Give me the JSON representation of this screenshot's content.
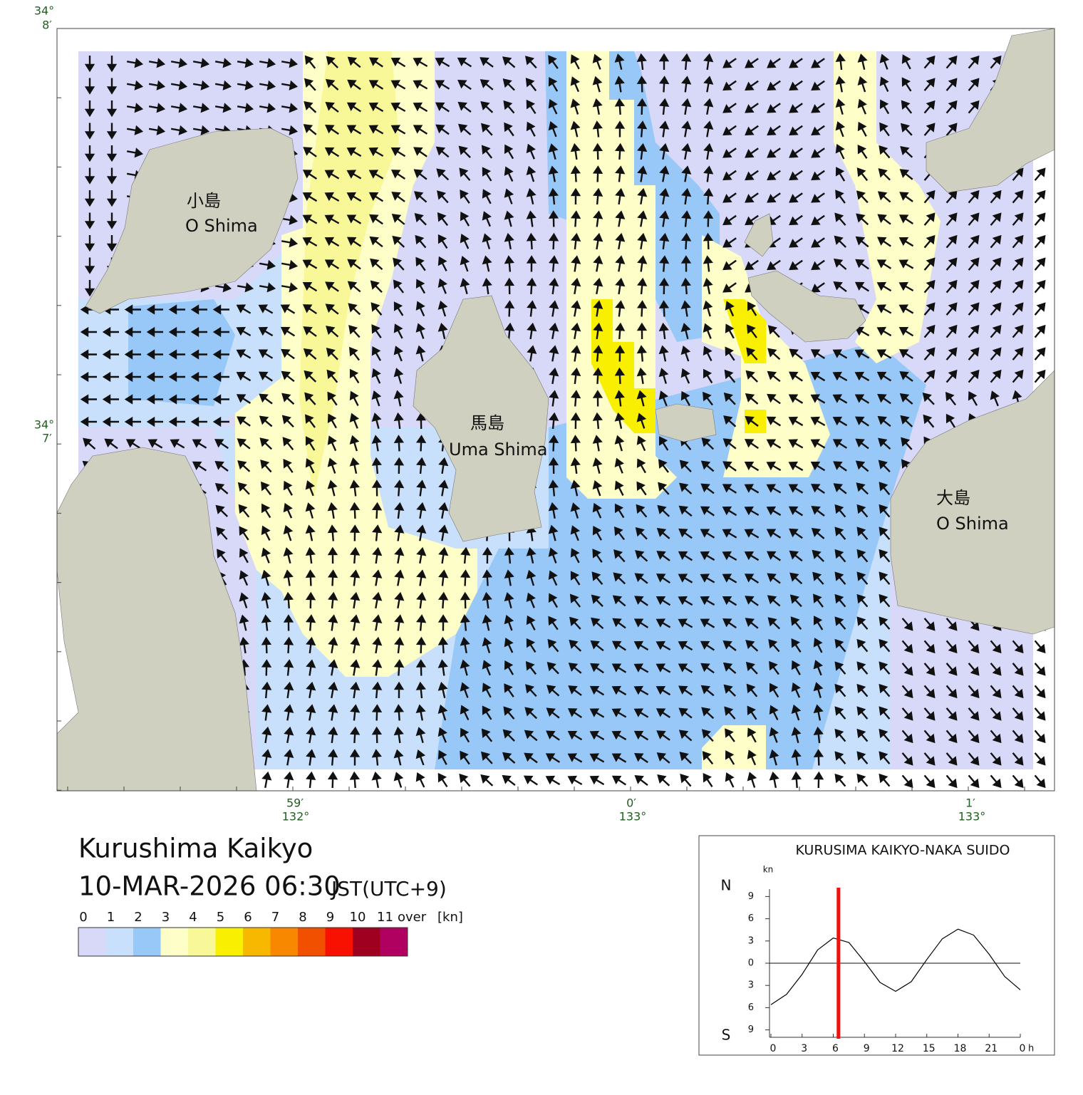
{
  "map": {
    "title": "Kurushima Kaikyo",
    "datetime": "10-MAR-2026 06:30",
    "timezone": "JST(UTC+9)",
    "lat_labels": [
      {
        "deg": "34°",
        "min": "8′"
      },
      {
        "deg": "34°",
        "min": "7′"
      }
    ],
    "lon_labels": [
      {
        "min": "59′",
        "deg": "132°"
      },
      {
        "min": "0′",
        "deg": "133°"
      },
      {
        "min": "1′",
        "deg": "133°"
      }
    ],
    "places": [
      {
        "ja": "小島",
        "en": "O Shima"
      },
      {
        "ja": "馬島",
        "en": "Uma Shima"
      },
      {
        "ja": "大島",
        "en": "O Shima"
      }
    ]
  },
  "legend": {
    "labels": [
      "0",
      "1",
      "2",
      "3",
      "4",
      "5",
      "6",
      "7",
      "8",
      "9",
      "10",
      "11"
    ],
    "over": "over",
    "unit": "[kn]",
    "colors": [
      "#d8d8f8",
      "#c8e0fc",
      "#98c8f8",
      "#fefec8",
      "#f8f898",
      "#f8f000",
      "#f8b800",
      "#f88800",
      "#f05000",
      "#f81000",
      "#a00020",
      "#b00060"
    ]
  },
  "chart_data": {
    "type": "line",
    "title": "KURUSIMA KAIKYO-NAKA SUIDO",
    "y_unit": "kn",
    "x_unit": "h",
    "north": "N",
    "south": "S",
    "x": [
      0,
      1.5,
      3,
      4.5,
      6,
      7.5,
      9,
      10.5,
      12,
      13.5,
      15,
      16.5,
      18,
      19.5,
      21,
      22.5,
      24
    ],
    "series": [
      {
        "color": "#000000",
        "values": [
          -5.6,
          -4.2,
          -1.5,
          1.8,
          3.4,
          2.8,
          0.2,
          -2.6,
          -3.8,
          -2.5,
          0.5,
          3.3,
          4.6,
          3.8,
          1.2,
          -1.8,
          -3.6
        ]
      }
    ],
    "now": 6.5,
    "now_color": "#ee1111",
    "xlim": [
      0,
      24
    ],
    "xticks": [
      0,
      3,
      6,
      9,
      12,
      15,
      18,
      21,
      {
        "value": 24,
        "label": "0"
      }
    ],
    "ylim": [
      -10,
      10
    ],
    "yticks": [
      {
        "value": -9,
        "label": "9"
      },
      {
        "value": -6,
        "label": "6"
      },
      {
        "value": -3,
        "label": "3"
      },
      0,
      3,
      6,
      9
    ]
  }
}
